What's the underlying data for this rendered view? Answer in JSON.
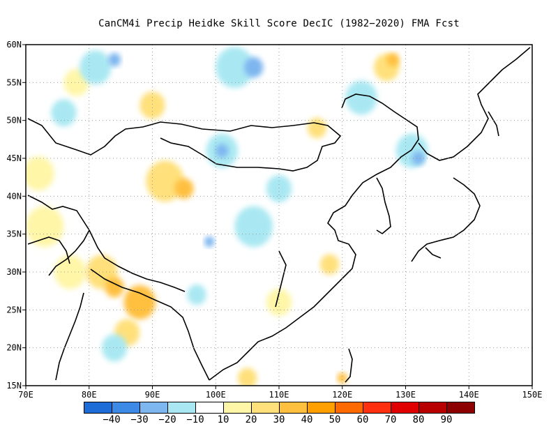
{
  "title": "CanCM4i Precip Heidke Skill Score DecIC (1982−2020) FMA Fcst",
  "map": {
    "lon_ticks": [
      {
        "value": 70,
        "label": "70E"
      },
      {
        "value": 80,
        "label": "80E"
      },
      {
        "value": 90,
        "label": "90E"
      },
      {
        "value": 100,
        "label": "100E"
      },
      {
        "value": 110,
        "label": "110E"
      },
      {
        "value": 120,
        "label": "120E"
      },
      {
        "value": 130,
        "label": "130E"
      },
      {
        "value": 140,
        "label": "140E"
      },
      {
        "value": 150,
        "label": "150E"
      }
    ],
    "lat_ticks": [
      {
        "value": 15,
        "label": "15N"
      },
      {
        "value": 20,
        "label": "20N"
      },
      {
        "value": 25,
        "label": "25N"
      },
      {
        "value": 30,
        "label": "30N"
      },
      {
        "value": 35,
        "label": "35N"
      },
      {
        "value": 40,
        "label": "40N"
      },
      {
        "value": 45,
        "label": "45N"
      },
      {
        "value": 50,
        "label": "50N"
      },
      {
        "value": 55,
        "label": "55N"
      },
      {
        "value": 60,
        "label": "60N"
      }
    ],
    "extent": {
      "lon_min": 70,
      "lon_max": 150,
      "lat_min": 15,
      "lat_max": 60
    },
    "gridlines": "dotted"
  },
  "colorbar": {
    "bins": [
      {
        "color": "#1e6cd8"
      },
      {
        "color": "#3d8ae6"
      },
      {
        "color": "#7eb6f0"
      },
      {
        "color": "#a9e8f2"
      },
      {
        "color": "#ffffff"
      },
      {
        "color": "#fff6a8"
      },
      {
        "color": "#ffe07a"
      },
      {
        "color": "#ffc040"
      },
      {
        "color": "#ffa000"
      },
      {
        "color": "#ff6a00"
      },
      {
        "color": "#ff3010"
      },
      {
        "color": "#e00000"
      },
      {
        "color": "#b80000"
      },
      {
        "color": "#8c0000"
      }
    ],
    "labels": [
      "−40",
      "−30",
      "−20",
      "−10",
      "10",
      "20",
      "30",
      "40",
      "50",
      "60",
      "70",
      "80",
      "90"
    ]
  },
  "skill_patches": [
    {
      "lon": 72,
      "lat": 43,
      "level": "pos10",
      "r": 2.5
    },
    {
      "lon": 73,
      "lat": 36,
      "level": "pos10",
      "r": 3
    },
    {
      "lon": 77,
      "lat": 30,
      "level": "pos10",
      "r": 2.5
    },
    {
      "lon": 82,
      "lat": 30,
      "level": "pos20",
      "r": 2.5
    },
    {
      "lon": 84,
      "lat": 28,
      "level": "pos30",
      "r": 1.5
    },
    {
      "lon": 88,
      "lat": 26,
      "level": "pos30",
      "r": 2.5
    },
    {
      "lon": 86,
      "lat": 22,
      "level": "pos20",
      "r": 2
    },
    {
      "lon": 92,
      "lat": 42,
      "level": "pos20",
      "r": 3
    },
    {
      "lon": 95,
      "lat": 41,
      "level": "pos30",
      "r": 1.5
    },
    {
      "lon": 90,
      "lat": 52,
      "level": "pos20",
      "r": 2
    },
    {
      "lon": 78,
      "lat": 55,
      "level": "pos10",
      "r": 2
    },
    {
      "lon": 76,
      "lat": 51,
      "level": "neg10",
      "r": 2
    },
    {
      "lon": 81,
      "lat": 57,
      "level": "neg10",
      "r": 2.5
    },
    {
      "lon": 84,
      "lat": 58,
      "level": "neg20",
      "r": 1
    },
    {
      "lon": 103,
      "lat": 57,
      "level": "neg10",
      "r": 3
    },
    {
      "lon": 106,
      "lat": 57,
      "level": "neg20",
      "r": 1.5
    },
    {
      "lon": 101,
      "lat": 46,
      "level": "neg10",
      "r": 2.5
    },
    {
      "lon": 101,
      "lat": 46,
      "level": "neg20",
      "r": 1
    },
    {
      "lon": 110,
      "lat": 41,
      "level": "neg10",
      "r": 2
    },
    {
      "lon": 106,
      "lat": 36,
      "level": "neg10",
      "r": 3
    },
    {
      "lon": 99,
      "lat": 34,
      "level": "neg20",
      "r": 0.8
    },
    {
      "lon": 118,
      "lat": 31,
      "level": "pos20",
      "r": 1.5
    },
    {
      "lon": 116,
      "lat": 49,
      "level": "pos20",
      "r": 1.5
    },
    {
      "lon": 123,
      "lat": 53,
      "level": "neg10",
      "r": 2.5
    },
    {
      "lon": 127,
      "lat": 57,
      "level": "pos20",
      "r": 2
    },
    {
      "lon": 128,
      "lat": 58,
      "level": "pos30",
      "r": 1
    },
    {
      "lon": 131,
      "lat": 46,
      "level": "neg10",
      "r": 2.5
    },
    {
      "lon": 132,
      "lat": 45,
      "level": "neg20",
      "r": 1
    },
    {
      "lon": 84,
      "lat": 20,
      "level": "neg10",
      "r": 2
    },
    {
      "lon": 97,
      "lat": 27,
      "level": "neg10",
      "r": 1.5
    },
    {
      "lon": 110,
      "lat": 26,
      "level": "pos10",
      "r": 2
    },
    {
      "lon": 105,
      "lat": 16,
      "level": "pos20",
      "r": 1.5
    },
    {
      "lon": 120,
      "lat": 16,
      "level": "pos30",
      "r": 0.8
    }
  ]
}
